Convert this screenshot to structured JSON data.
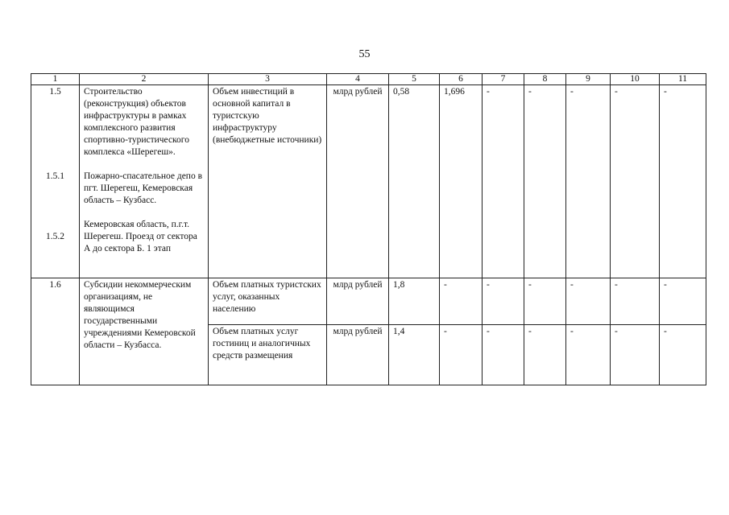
{
  "page_number": "55",
  "header": [
    "1",
    "2",
    "3",
    "4",
    "5",
    "6",
    "7",
    "8",
    "9",
    "10",
    "11"
  ],
  "row_1_5": {
    "num": "1.5",
    "name": "Строительство (реконструкция) объектов инфраструктуры в рамках комплексного развития спортивно-туристического комплекса «Шерегеш».",
    "sub": [
      {
        "num": "1.5.1",
        "name": "Пожарно-спасательное депо в пгт. Шерегеш, Кемеровская область – Кузбасс."
      },
      {
        "num": "1.5.2",
        "name": "Кемеровская область, п.г.т. Шерегеш. Проезд от сектора А до сектора Б. 1 этап"
      }
    ],
    "indicator": "Объем инвестиций в основной капитал в туристскую инфраструктуру (внебюджетные источники)",
    "unit": "млрд рублей",
    "values": [
      "0,58",
      "1,696",
      "-",
      "-",
      "-",
      "-",
      "-"
    ]
  },
  "row_1_6": {
    "num": "1.6",
    "name": "Субсидии некоммерческим организациям, не являющимся государственными учреждениями Кемеровской области – Кузбасса.",
    "indicators": [
      {
        "indicator": "Объем платных туристских услуг, оказанных населению",
        "unit": "млрд рублей",
        "values": [
          "1,8",
          "-",
          "-",
          "-",
          "-",
          "-",
          "-"
        ]
      },
      {
        "indicator": "Объем платных услуг гостиниц и аналогичных средств размещения",
        "unit": "млрд рублей",
        "values": [
          "1,4",
          "-",
          "-",
          "-",
          "-",
          "-",
          "-"
        ]
      }
    ]
  }
}
